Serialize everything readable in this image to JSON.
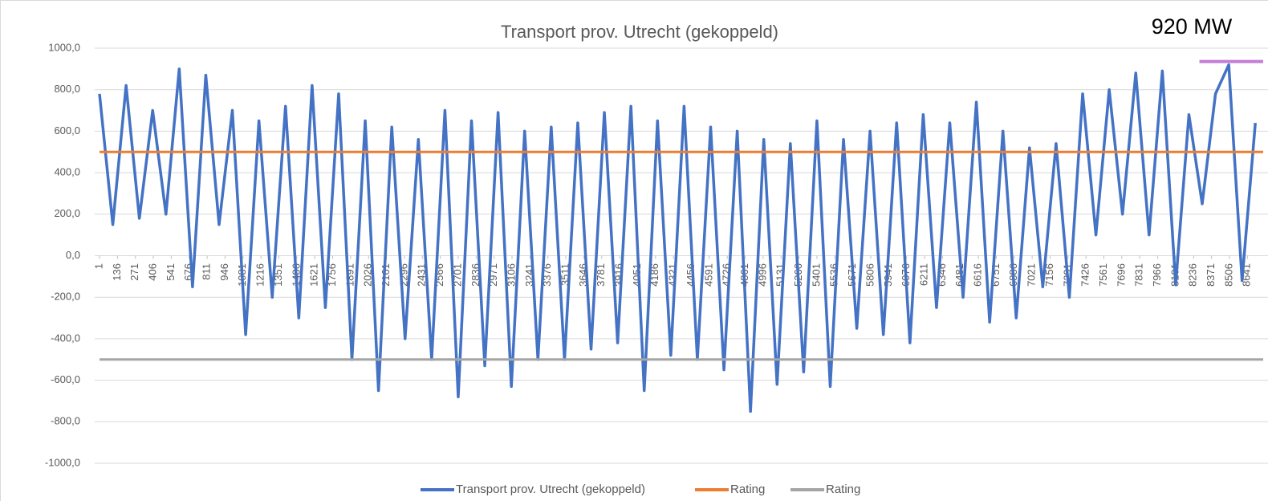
{
  "chart_data": {
    "type": "line",
    "title": "Transport prov. Utrecht (gekoppeld)",
    "xlim": [
      1,
      8760
    ],
    "xticks": [
      1,
      136,
      271,
      406,
      541,
      676,
      811,
      946,
      1081,
      1216,
      1351,
      1486,
      1621,
      1756,
      1891,
      2026,
      2161,
      2296,
      2431,
      2566,
      2701,
      2836,
      2971,
      3106,
      3241,
      3376,
      3511,
      3646,
      3781,
      3916,
      4051,
      4186,
      4321,
      4456,
      4591,
      4726,
      4861,
      4996,
      5131,
      5266,
      5401,
      5536,
      5671,
      5806,
      5941,
      6076,
      6211,
      6346,
      6481,
      6616,
      6751,
      6886,
      7021,
      7156,
      7291,
      7426,
      7561,
      7696,
      7831,
      7966,
      8101,
      8236,
      8371,
      8506,
      8641
    ],
    "ylim": [
      -1000,
      1000
    ],
    "yticks": [
      {
        "value": -1000,
        "label": "-1000,0"
      },
      {
        "value": -800,
        "label": "-800,0"
      },
      {
        "value": -600,
        "label": "-600,0"
      },
      {
        "value": -400,
        "label": "-400,0"
      },
      {
        "value": -200,
        "label": "-200,0"
      },
      {
        "value": 0,
        "label": "0,0"
      },
      {
        "value": 200,
        "label": "200,0"
      },
      {
        "value": 400,
        "label": "400,0"
      },
      {
        "value": 600,
        "label": "600,0"
      },
      {
        "value": 800,
        "label": "800,0"
      },
      {
        "value": 1000,
        "label": "1000,0"
      }
    ],
    "grid": true,
    "legend": "bottom",
    "series": [
      {
        "name": "Transport prov. Utrecht (gekoppeld)",
        "color": "#4472c4",
        "x": [
          1,
          101,
          201,
          301,
          401,
          501,
          601,
          701,
          801,
          901,
          1001,
          1101,
          1201,
          1301,
          1401,
          1501,
          1601,
          1701,
          1801,
          1901,
          2001,
          2101,
          2201,
          2301,
          2401,
          2501,
          2601,
          2701,
          2801,
          2901,
          3001,
          3101,
          3201,
          3301,
          3401,
          3501,
          3601,
          3701,
          3801,
          3901,
          4001,
          4101,
          4201,
          4301,
          4401,
          4501,
          4601,
          4701,
          4801,
          4901,
          5001,
          5101,
          5201,
          5301,
          5401,
          5501,
          5601,
          5701,
          5801,
          5901,
          6001,
          6101,
          6201,
          6301,
          6401,
          6501,
          6601,
          6701,
          6801,
          6901,
          7001,
          7101,
          7201,
          7301,
          7401,
          7501,
          7601,
          7701,
          7801,
          7901,
          8001,
          8101,
          8201,
          8301,
          8401,
          8501,
          8601,
          8701
        ],
        "values": [
          780,
          150,
          820,
          180,
          700,
          200,
          900,
          -150,
          870,
          150,
          700,
          -380,
          650,
          -200,
          720,
          -300,
          820,
          -250,
          780,
          -500,
          650,
          -650,
          620,
          -400,
          560,
          -500,
          700,
          -680,
          650,
          -530,
          690,
          -630,
          600,
          -500,
          620,
          -500,
          640,
          -450,
          690,
          -420,
          720,
          -650,
          650,
          -480,
          720,
          -500,
          620,
          -550,
          600,
          -750,
          560,
          -620,
          540,
          -560,
          650,
          -630,
          560,
          -350,
          600,
          -380,
          640,
          -420,
          680,
          -250,
          640,
          -200,
          740,
          -320,
          600,
          -300,
          520,
          -150,
          540,
          -200,
          780,
          100,
          800,
          200,
          880,
          100,
          890,
          -140,
          680,
          250,
          780,
          920,
          -120,
          640
        ]
      },
      {
        "name": "Rating",
        "color": "#ed7d31",
        "x": [
          1,
          8760
        ],
        "values": [
          500,
          500
        ]
      },
      {
        "name": "Rating",
        "color": "#a5a5a5",
        "x": [
          1,
          8760
        ],
        "values": [
          -500,
          -500
        ]
      }
    ],
    "annotation": {
      "label": "920 MW",
      "value": 920,
      "x": [
        8280,
        8760
      ],
      "color": "#c47fd5"
    }
  }
}
